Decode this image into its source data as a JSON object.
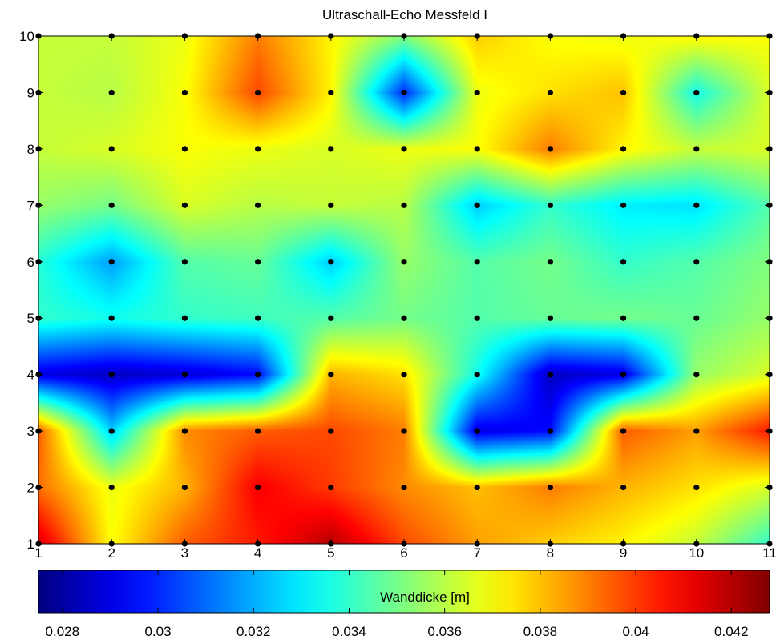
{
  "chart_data": {
    "type": "heatmap",
    "title": "Ultraschall-Echo Messfeld I",
    "xlabel": "",
    "ylabel": "",
    "xlim": [
      1,
      11
    ],
    "ylim": [
      1,
      10
    ],
    "x_ticks": [
      "1",
      "2",
      "3",
      "4",
      "5",
      "6",
      "7",
      "8",
      "9",
      "10",
      "11"
    ],
    "y_ticks": [
      "1",
      "2",
      "3",
      "4",
      "5",
      "6",
      "7",
      "8",
      "9",
      "10"
    ],
    "x": [
      1,
      2,
      3,
      4,
      5,
      6,
      7,
      8,
      9,
      10,
      11
    ],
    "y": [
      1,
      2,
      3,
      4,
      5,
      6,
      7,
      8,
      9,
      10
    ],
    "z": [
      [
        0.0415,
        0.037,
        0.0395,
        0.0405,
        0.042,
        0.0398,
        0.0385,
        0.0378,
        0.0372,
        0.0362,
        0.034
      ],
      [
        0.0392,
        0.0368,
        0.0382,
        0.041,
        0.04,
        0.0388,
        0.038,
        0.039,
        0.0382,
        0.0375,
        0.0365
      ],
      [
        0.0395,
        0.0325,
        0.0388,
        0.0395,
        0.0398,
        0.039,
        0.029,
        0.0295,
        0.0395,
        0.0385,
        0.0405
      ],
      [
        0.029,
        0.0285,
        0.0288,
        0.0295,
        0.0382,
        0.0375,
        0.0335,
        0.0285,
        0.029,
        0.0355,
        0.0365
      ],
      [
        0.034,
        0.0335,
        0.034,
        0.0342,
        0.0345,
        0.035,
        0.0345,
        0.0348,
        0.035,
        0.0348,
        0.0355
      ],
      [
        0.0338,
        0.0318,
        0.0345,
        0.0348,
        0.0325,
        0.0355,
        0.0345,
        0.035,
        0.034,
        0.0345,
        0.0352
      ],
      [
        0.0355,
        0.035,
        0.0365,
        0.036,
        0.0362,
        0.036,
        0.0325,
        0.034,
        0.033,
        0.0328,
        0.0345
      ],
      [
        0.0362,
        0.0365,
        0.037,
        0.0368,
        0.0365,
        0.0368,
        0.037,
        0.039,
        0.0372,
        0.0362,
        0.0365
      ],
      [
        0.0362,
        0.036,
        0.037,
        0.0398,
        0.0372,
        0.03,
        0.0368,
        0.0375,
        0.038,
        0.0335,
        0.0365
      ],
      [
        0.0362,
        0.0362,
        0.0368,
        0.039,
        0.0372,
        0.0352,
        0.0378,
        0.037,
        0.0368,
        0.0372,
        0.037
      ]
    ],
    "measurement_points": "all grid nodes x=1..11, y=1..10",
    "colormap": "jet",
    "clim": [
      0.0275,
      0.0428
    ],
    "colorbar": {
      "label": "Wanddicke [m]",
      "ticks": [
        "0.028",
        "0.03",
        "0.032",
        "0.034",
        "0.036",
        "0.038",
        "0.04",
        "0.042"
      ],
      "tick_values": [
        0.028,
        0.03,
        0.032,
        0.034,
        0.036,
        0.038,
        0.04,
        0.042
      ],
      "placement": "bottom"
    },
    "marker_color": "#000000"
  }
}
